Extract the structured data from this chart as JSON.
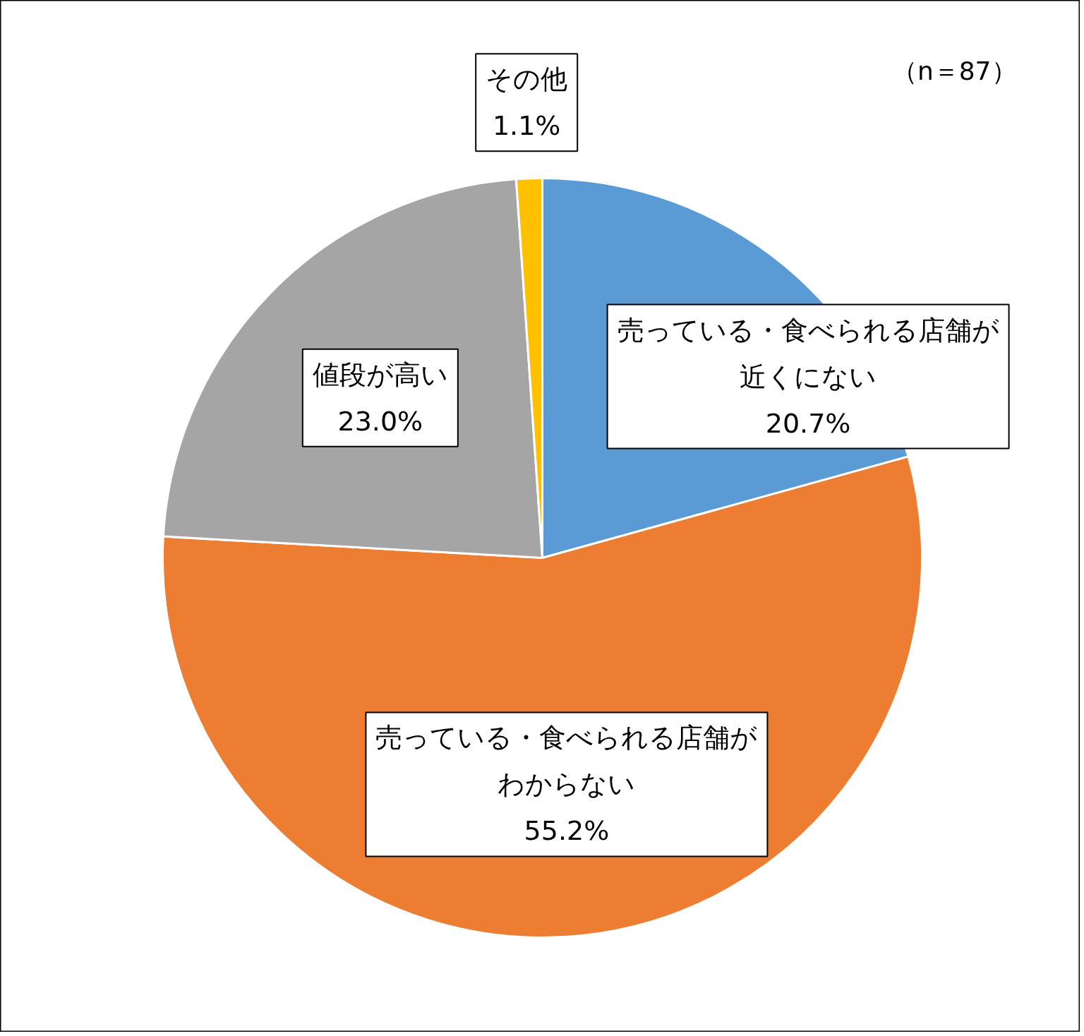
{
  "chart_data": {
    "type": "pie",
    "categories": [
      "売っている・食べられる店舗が近くにない",
      "売っている・食べられる店舗がわからない",
      "値段が高い",
      "その他"
    ],
    "values": [
      20.7,
      55.2,
      23.0,
      1.1
    ],
    "colors": [
      "#5b9bd5",
      "#ed7d31",
      "#a5a5a5",
      "#ffc000"
    ],
    "value_labels": [
      "20.7%",
      "55.2%",
      "23.0%",
      "1.1%"
    ],
    "annotations": [
      "（n＝87）"
    ]
  }
}
